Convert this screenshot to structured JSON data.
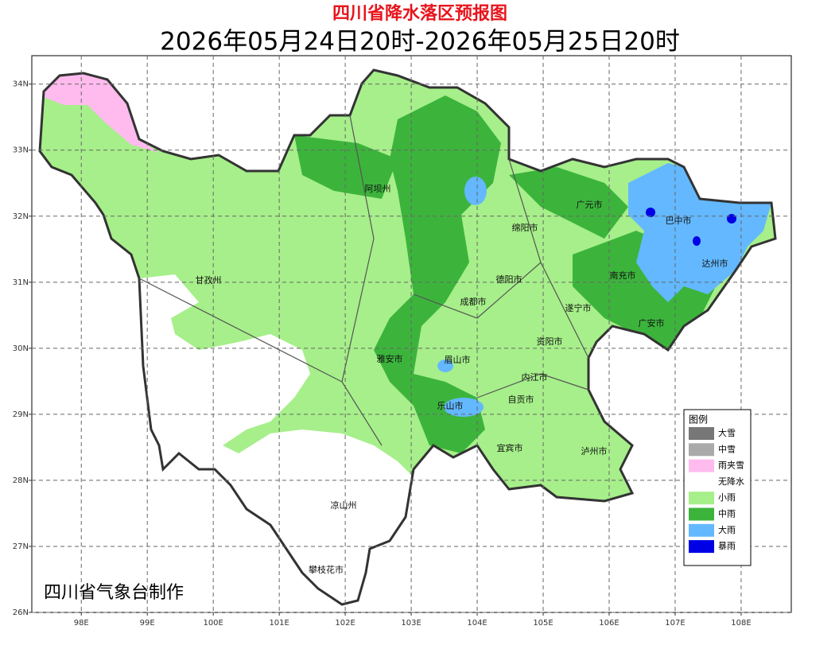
{
  "title": "四川省降水落区预报图",
  "subtitle": "2026年05月24日20时-2026年05月25日20时",
  "footer": "四川省气象台制作",
  "map": {
    "xlim": [
      97.25,
      108.76
    ],
    "ylim": [
      26,
      34.43
    ],
    "xticks": [
      {
        "value": 98,
        "label": "98E"
      },
      {
        "value": 99,
        "label": "99E"
      },
      {
        "value": 100,
        "label": "100E"
      },
      {
        "value": 101,
        "label": "101E"
      },
      {
        "value": 102,
        "label": "102E"
      },
      {
        "value": 103,
        "label": "103E"
      },
      {
        "value": 104,
        "label": "104E"
      },
      {
        "value": 105,
        "label": "105E"
      },
      {
        "value": 106,
        "label": "106E"
      },
      {
        "value": 107,
        "label": "107E"
      },
      {
        "value": 108,
        "label": "108E"
      }
    ],
    "yticks": [
      {
        "value": 26,
        "label": "26N"
      },
      {
        "value": 27,
        "label": "27N"
      },
      {
        "value": 28,
        "label": "28N"
      },
      {
        "value": 29,
        "label": "29N"
      },
      {
        "value": 30,
        "label": "30N"
      },
      {
        "value": 31,
        "label": "31N"
      },
      {
        "value": 32,
        "label": "32N"
      },
      {
        "value": 33,
        "label": "33N"
      },
      {
        "value": 34,
        "label": "34N"
      }
    ]
  },
  "cities": [
    "阿坝州",
    "广元市",
    "巴中市",
    "绵阳市",
    "达州市",
    "甘孜州",
    "德阳市",
    "南充市",
    "成都市",
    "遂宁市",
    "广安市",
    "资阳市",
    "雅安市",
    "眉山市",
    "内江市",
    "自贡市",
    "乐山市",
    "宜宾市",
    "泸州市",
    "凉山州",
    "攀枝花市"
  ],
  "legend": {
    "title": "图例",
    "items": [
      {
        "label": "大雪",
        "color": "#777777"
      },
      {
        "label": "中雪",
        "color": "#aaaaaa"
      },
      {
        "label": "雨夹雪",
        "color": "#ffbbee"
      },
      {
        "label": "无降水",
        "color": "#ffffff"
      },
      {
        "label": "小雨",
        "color": "#a6ef8a"
      },
      {
        "label": "中雨",
        "color": "#3cb43c"
      },
      {
        "label": "大雨",
        "color": "#63b8ff"
      },
      {
        "label": "暴雨",
        "color": "#0000e6"
      }
    ]
  }
}
